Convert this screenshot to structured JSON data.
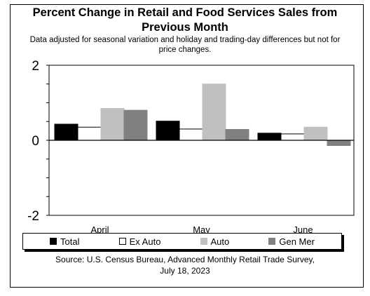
{
  "title_line1": "Percent Change in Retail and Food Services Sales from",
  "title_line2": "Previous Month",
  "subtitle_line1": "Data adjusted for seasonal variation and holiday and trading-day differences but not for",
  "subtitle_line2": "price changes.",
  "source_line1": "Source: U.S. Census Bureau, Advanced Monthly Retail Trade Survey,",
  "source_line2": "July 18, 2023",
  "chart_data": {
    "type": "bar",
    "title": "Percent Change in Retail and Food Services Sales from Previous Month",
    "subtitle": "Data adjusted for seasonal variation and holiday and trading-day differences but not for price changes.",
    "categories": [
      "April",
      "May",
      "June"
    ],
    "series": [
      {
        "name": "Total",
        "color": "#000000",
        "values": [
          0.43,
          0.51,
          0.19
        ]
      },
      {
        "name": "Ex Auto",
        "color": "#ffffff",
        "values": [
          0.35,
          0.3,
          0.17
        ]
      },
      {
        "name": "Auto",
        "color": "#c0c0c0",
        "values": [
          0.85,
          1.5,
          0.35
        ]
      },
      {
        "name": "Gen Mer",
        "color": "#808080",
        "values": [
          0.8,
          0.29,
          -0.14
        ]
      }
    ],
    "ylim": [
      -2,
      2
    ],
    "yticks": [
      "2",
      "0",
      "-2"
    ],
    "ytick_values": [
      2,
      0,
      -2
    ],
    "legend": "bottom",
    "grid": false
  }
}
